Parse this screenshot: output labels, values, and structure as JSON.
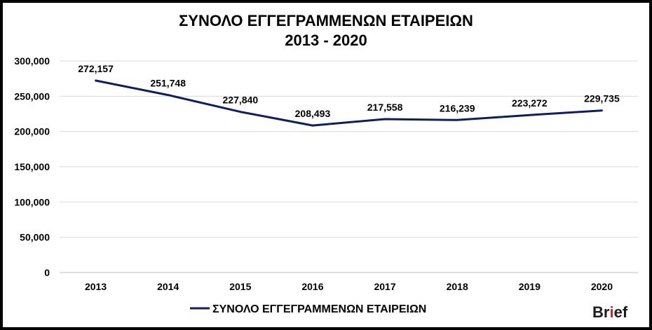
{
  "chart_data": {
    "type": "line",
    "title": "ΣΥΝΟΛΟ ΕΓΓΕΓΡΑΜΜΕΝΩΝ ΕΤΑΙΡΕΙΩΝ",
    "subtitle": "2013 - 2020",
    "categories": [
      "2013",
      "2014",
      "2015",
      "2016",
      "2017",
      "2018",
      "2019",
      "2020"
    ],
    "series": [
      {
        "name": "ΣΥΝΟΛΟ ΕΓΓΕΓΡΑΜΜΕΝΩΝ ΕΤΑΙΡΕΙΩΝ",
        "values": [
          272157,
          251748,
          227840,
          208493,
          217558,
          216239,
          223272,
          229735
        ],
        "data_labels": [
          "272,157",
          "251,748",
          "227,840",
          "208,493",
          "217,558",
          "216,239",
          "223,272",
          "229,735"
        ],
        "color": "#0e1f5b"
      }
    ],
    "ylim": [
      0,
      300000
    ],
    "yticks": [
      0,
      50000,
      100000,
      150000,
      200000,
      250000,
      300000
    ],
    "ytick_labels": [
      "0",
      "50,000",
      "100,000",
      "150,000",
      "200,000",
      "250,000",
      "300,000"
    ],
    "xlabel": "",
    "ylabel": "",
    "grid": true,
    "legend_position": "bottom"
  },
  "branding": {
    "logo_main": "Br",
    "logo_accent": "i",
    "logo_tail": "ef",
    "accent_color": "#e21b23"
  }
}
